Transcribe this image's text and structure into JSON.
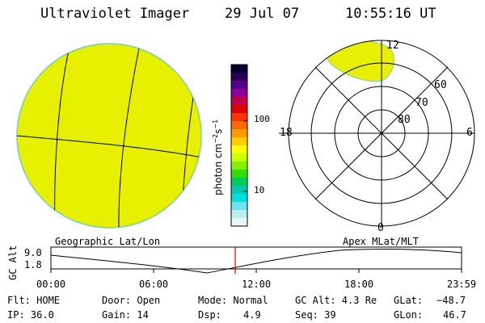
{
  "header": {
    "instrument": "Ultraviolet Imager",
    "date": "29 Jul 07",
    "time": "10:55:16 UT"
  },
  "colorbar": {
    "unit_label": "photon cm",
    "unit_sup1": "−2",
    "unit_mid": "s",
    "unit_sup2": "−1",
    "ticks": [
      "100",
      "10"
    ],
    "colors": [
      "#000033",
      "#2a0055",
      "#55008a",
      "#8a0099",
      "#c0004a",
      "#e00000",
      "#ff3300",
      "#ff6a00",
      "#ff9900",
      "#ffcc00",
      "#ffff00",
      "#ccff00",
      "#88ee00",
      "#33dd00",
      "#00cc55",
      "#00ccaa",
      "#00dddd",
      "#66e8ee",
      "#b8f0f4",
      "#e8f8f8"
    ]
  },
  "polar": {
    "lat_labels": [
      "60",
      "70",
      "80"
    ],
    "mlt_labels": {
      "top": "12",
      "right": "6",
      "bottom": "0",
      "left": "18"
    }
  },
  "timeline": {
    "left_title": "Geographic Lat/Lon",
    "right_title": "Apex MLat/MLT",
    "ylabel": "GC Alt",
    "ymax": "9.0",
    "ymin": "1.8",
    "xticks": [
      "00:00",
      "06:00",
      "12:00",
      "18:00",
      "23:59"
    ],
    "current_time_marker": "10:55"
  },
  "status": {
    "flt": "Flt: HOME",
    "ip": "IP: 36.0",
    "door": "Door: Open",
    "gain": "Gain: 14",
    "mode": "Mode: Normal",
    "dsp_label": "Dsp:",
    "dsp_value": "4.9",
    "gc_alt": "GC Alt: 4.3 Re",
    "seq": "Seq: 39",
    "glat_label": "GLat:",
    "glat_value": "−48.7",
    "glon_label": "GLon:",
    "glon_value": "46.7"
  },
  "colors": {
    "image_fill": "#e6f000",
    "image_edge": "#7fd0a0",
    "marker": "#e00000"
  }
}
